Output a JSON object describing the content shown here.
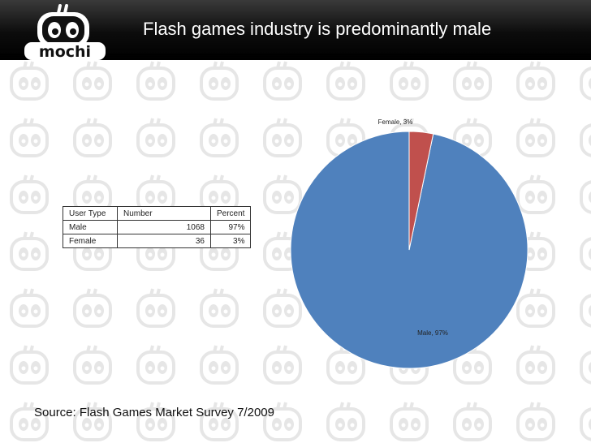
{
  "header": {
    "title": "Flash games industry is predominantly male",
    "logo_text": "mochi"
  },
  "table": {
    "headers": [
      "User Type",
      "Number",
      "Percent"
    ],
    "rows": [
      [
        "Male",
        "1068",
        "97%"
      ],
      [
        "Female",
        "36",
        "3%"
      ]
    ]
  },
  "chart_data": {
    "type": "pie",
    "slices": [
      {
        "label": "Male",
        "value": 1068,
        "percent": 97,
        "color": "#4f81bd",
        "data_label": "Male, 97%"
      },
      {
        "label": "Female",
        "value": 36,
        "percent": 3,
        "color": "#c0504d",
        "data_label": "Female, 3%"
      }
    ]
  },
  "footer": {
    "source": "Source: Flash Games Market Survey 7/2009"
  },
  "colors": {
    "header_bg": "#000000",
    "title_text": "#ffffff",
    "male_slice": "#4f81bd",
    "female_slice": "#c0504d",
    "watermark": "#e9e9e9"
  }
}
